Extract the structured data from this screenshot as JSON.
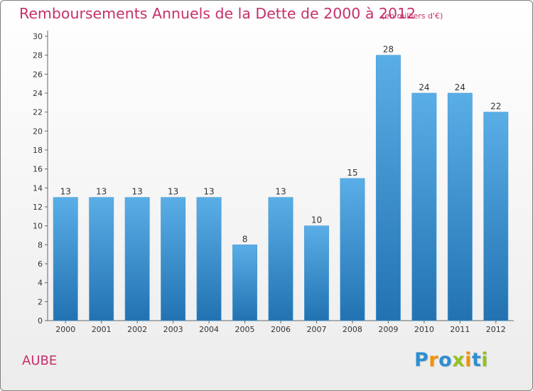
{
  "chart_data": {
    "type": "bar",
    "title": "Remboursements Annuels de la Dette de 2000 à 2012",
    "subtitle": "(en milliers d'€)",
    "xlabel": "",
    "ylabel": "",
    "categories": [
      "2000",
      "2001",
      "2002",
      "2003",
      "2004",
      "2005",
      "2006",
      "2007",
      "2008",
      "2009",
      "2010",
      "2011",
      "2012"
    ],
    "values": [
      13,
      13,
      13,
      13,
      13,
      8,
      13,
      10,
      15,
      28,
      24,
      24,
      22
    ],
    "data_labels": [
      "13",
      "13",
      "13",
      "13",
      "13",
      "8",
      "13",
      "10",
      "15",
      "28",
      "24",
      "24",
      "22"
    ],
    "ylim": [
      0,
      30
    ],
    "yticks": [
      0,
      2,
      4,
      6,
      8,
      10,
      12,
      14,
      16,
      18,
      20,
      22,
      24,
      26,
      28,
      30
    ],
    "grid": false,
    "legend": "none",
    "colors": {
      "bar_top": "#5aaee6",
      "bar_bottom": "#2272b2",
      "title": "#c5306b"
    }
  },
  "footer": {
    "place": "AUBE",
    "logo_letters": [
      {
        "char": "P",
        "color": "#2e8fd0"
      },
      {
        "char": "r",
        "color": "#f39200"
      },
      {
        "char": "o",
        "color": "#2e8fd0"
      },
      {
        "char": "x",
        "color": "#95c11f"
      },
      {
        "char": "i",
        "color": "#f39200"
      },
      {
        "char": "t",
        "color": "#2e8fd0"
      },
      {
        "char": "i",
        "color": "#95c11f"
      }
    ]
  }
}
